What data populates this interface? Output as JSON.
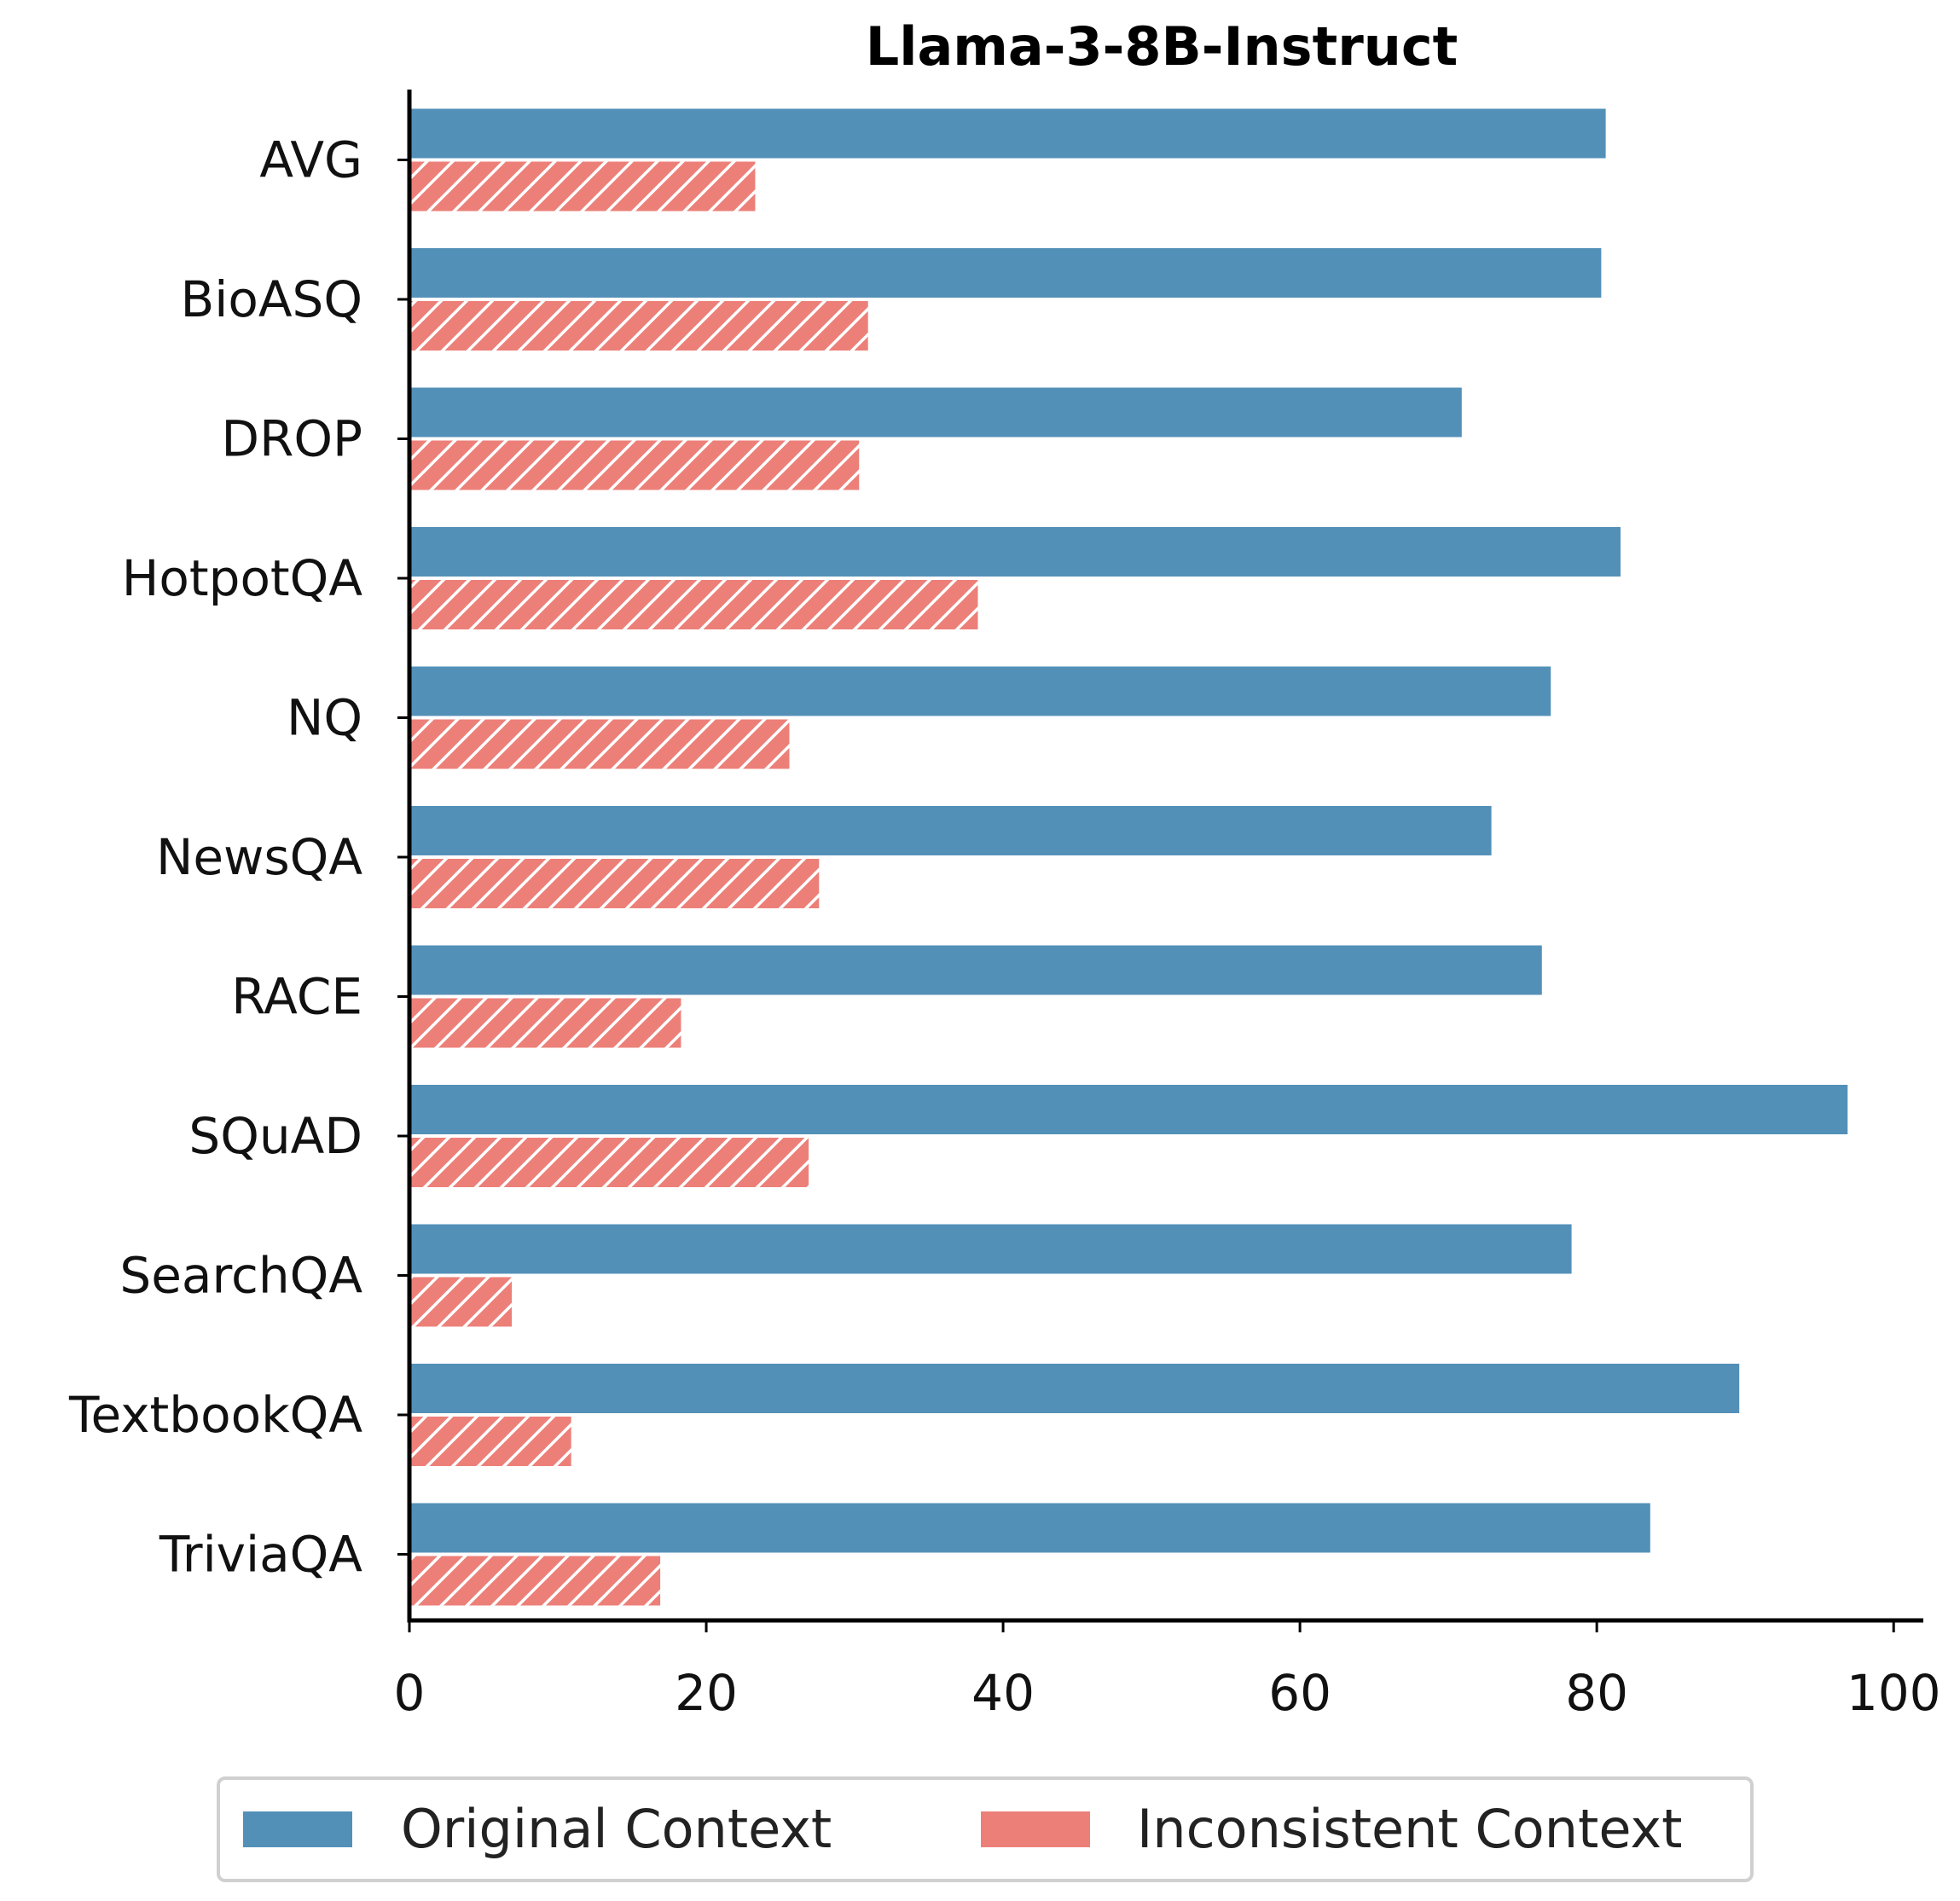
{
  "chart_data": {
    "type": "bar",
    "orientation": "horizontal",
    "title": "Llama-3-8B-Instruct",
    "xlabel": "",
    "ylabel": "",
    "categories": [
      "AVG",
      "BioASQ",
      "DROP",
      "HotpotQA",
      "NQ",
      "NewsQA",
      "RACE",
      "SQuAD",
      "SearchQA",
      "TextbookQA",
      "TriviaQA"
    ],
    "series": [
      {
        "name": "Original Context",
        "color": "#5390b8",
        "pattern": "solid",
        "values": [
          80.6,
          80.3,
          70.9,
          81.6,
          76.9,
          72.9,
          76.3,
          96.9,
          78.3,
          89.6,
          83.6
        ]
      },
      {
        "name": "Inconsistent Context",
        "color": "#ec8079",
        "pattern": "hatch",
        "values": [
          23.3,
          30.9,
          30.3,
          38.3,
          25.6,
          27.6,
          18.3,
          26.9,
          6.9,
          10.9,
          16.9
        ]
      }
    ],
    "xlim": [
      0,
      102
    ],
    "xticks": [
      "0",
      "20",
      "40",
      "60",
      "80",
      "100"
    ],
    "xtick_values": [
      0,
      20,
      40,
      60,
      80,
      100
    ],
    "grid": false,
    "legend_position": "bottom-center"
  }
}
